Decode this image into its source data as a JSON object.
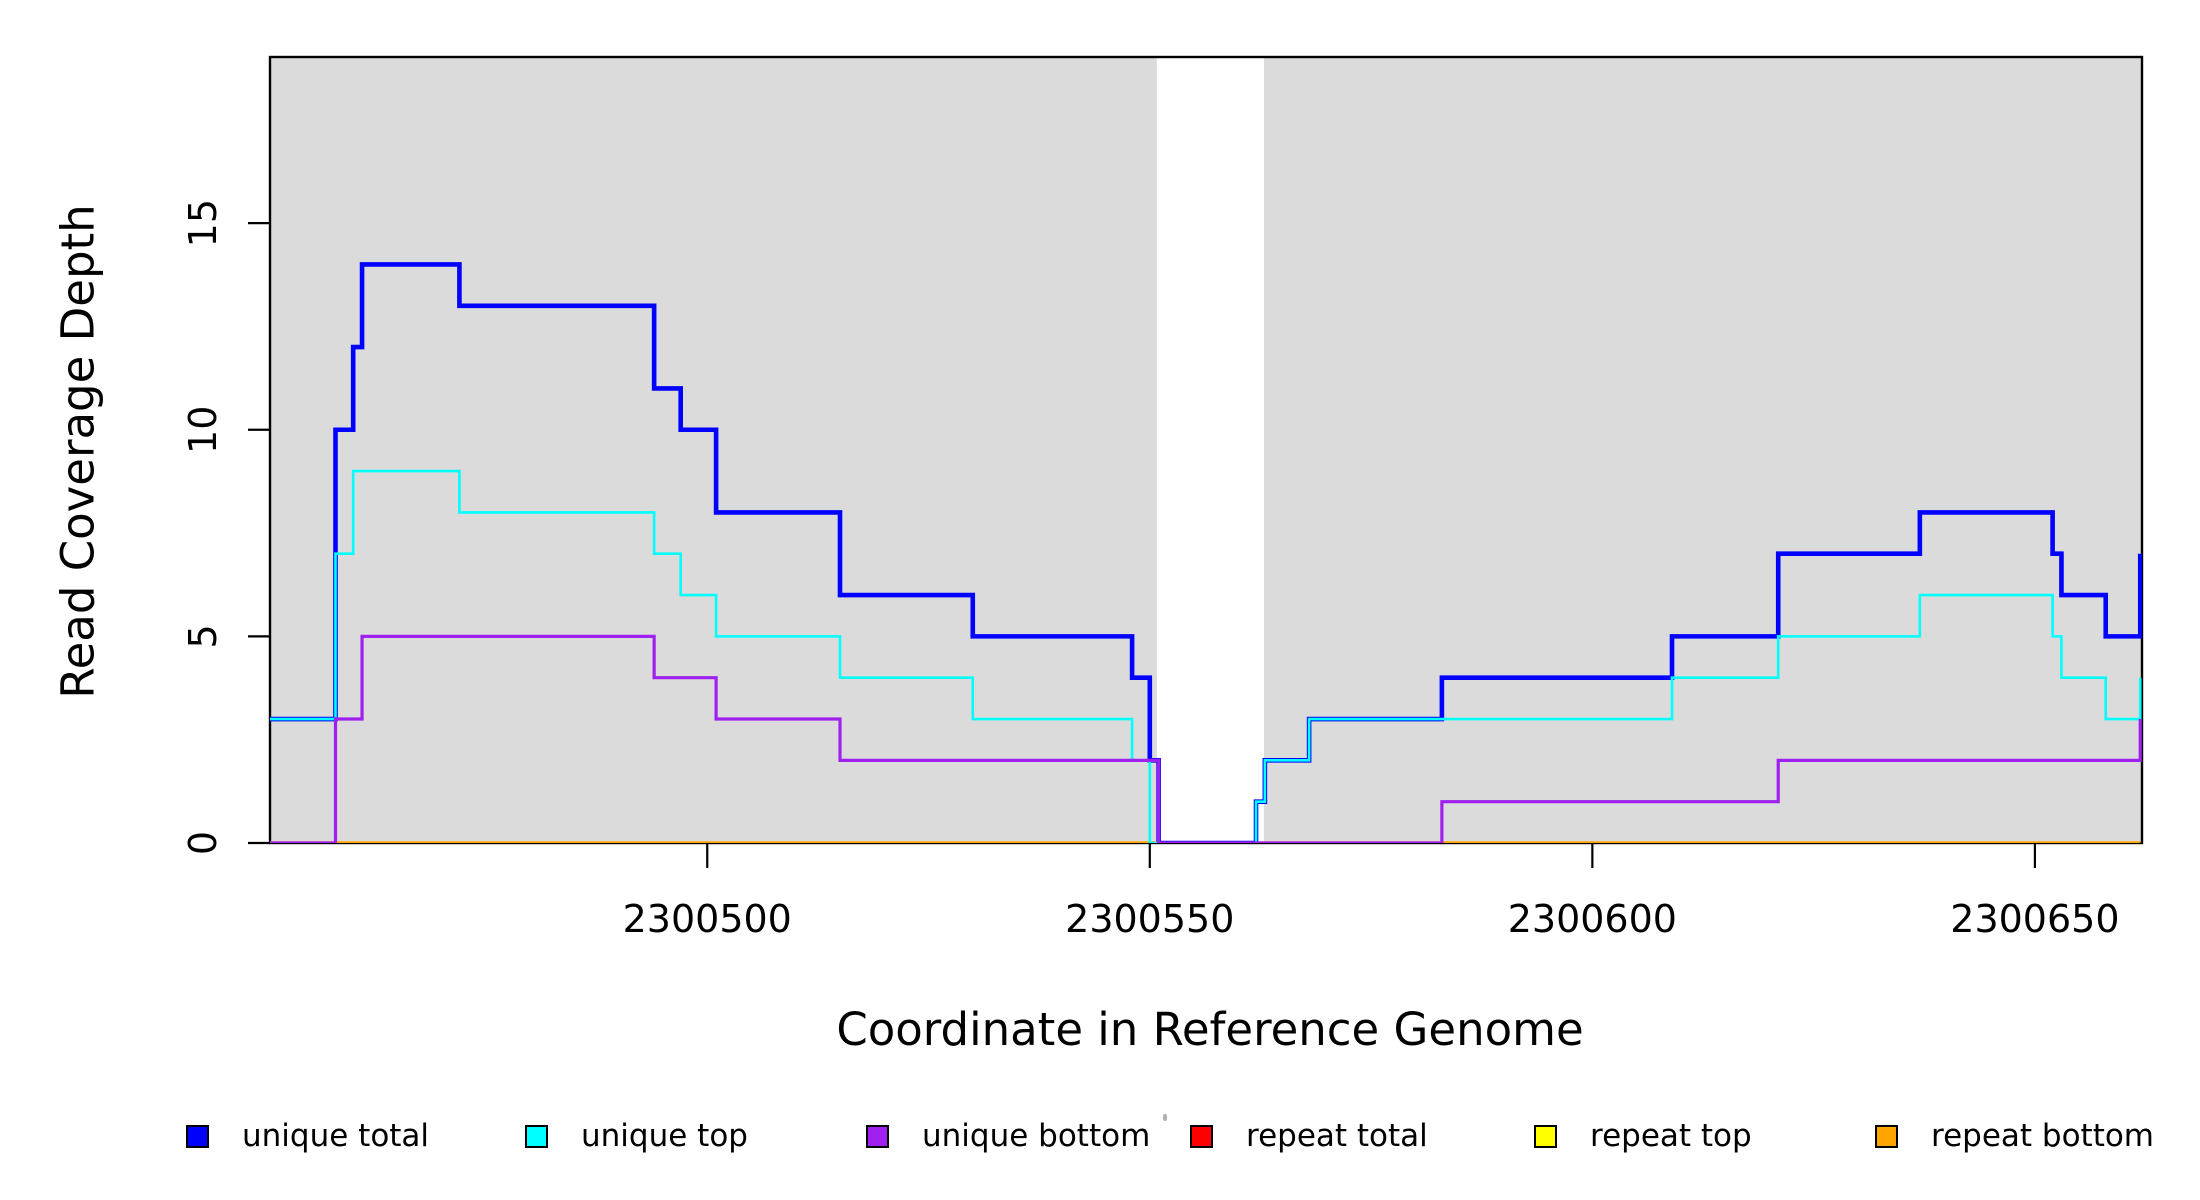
{
  "background": "#FFFFFF",
  "chart_data": {
    "type": "line",
    "subtype": "step-post",
    "title": "",
    "xlabel": "Coordinate in Reference Genome",
    "ylabel": "Read Coverage Depth",
    "xlim": [
      2300450.6,
      2300662.1
    ],
    "ylim": [
      0,
      19.02
    ],
    "x_ticks": [
      2300500,
      2300550,
      2300600,
      2300650
    ],
    "y_ticks": [
      0,
      5,
      10,
      15
    ],
    "grid": false,
    "legend_position": "bottom",
    "plot_bg": "#FFFFFF",
    "shaded_regions": [
      {
        "name": "unique-region-1",
        "x0": 2300450.6,
        "x1": 2300550.8,
        "color": "#DBDBDB"
      },
      {
        "name": "unique-region-2",
        "x0": 2300562.9,
        "x1": 2300662.1,
        "color": "#DBDBDB"
      }
    ],
    "series": [
      {
        "name": "repeat total",
        "color": "#FF0000",
        "width": 3.0,
        "points": [
          [
            2300450.6,
            0
          ],
          [
            2300661.9,
            0
          ]
        ]
      },
      {
        "name": "repeat top",
        "color": "#FFFF00",
        "width": 3.0,
        "points": [
          [
            2300450.6,
            0
          ],
          [
            2300661.9,
            0
          ]
        ]
      },
      {
        "name": "repeat bottom",
        "color": "#FFA500",
        "width": 3.4,
        "points": [
          [
            2300450.6,
            0
          ],
          [
            2300661.9,
            0
          ]
        ]
      },
      {
        "name": "unique total",
        "color": "#0000FF",
        "width": 4.6,
        "points": [
          [
            2300450.6,
            3
          ],
          [
            2300458,
            10
          ],
          [
            2300460,
            12
          ],
          [
            2300461,
            14
          ],
          [
            2300472,
            13
          ],
          [
            2300494,
            11
          ],
          [
            2300497,
            10
          ],
          [
            2300501,
            8
          ],
          [
            2300515,
            6
          ],
          [
            2300530,
            5
          ],
          [
            2300548,
            4
          ],
          [
            2300550,
            2
          ],
          [
            2300551,
            0
          ],
          [
            2300562,
            1
          ],
          [
            2300563,
            2
          ],
          [
            2300568,
            3
          ],
          [
            2300583,
            4
          ],
          [
            2300609,
            5
          ],
          [
            2300621,
            7
          ],
          [
            2300637,
            8
          ],
          [
            2300652,
            7
          ],
          [
            2300653,
            6
          ],
          [
            2300658,
            5
          ],
          [
            2300661.9,
            7
          ]
        ]
      },
      {
        "name": "unique top",
        "color": "#00FFFF",
        "width": 2.6,
        "points": [
          [
            2300450.6,
            3
          ],
          [
            2300458,
            7
          ],
          [
            2300460,
            9
          ],
          [
            2300472,
            8
          ],
          [
            2300494,
            7
          ],
          [
            2300497,
            6
          ],
          [
            2300501,
            5
          ],
          [
            2300515,
            4
          ],
          [
            2300530,
            3
          ],
          [
            2300548,
            2
          ],
          [
            2300550,
            0
          ],
          [
            2300562,
            1
          ],
          [
            2300563,
            2
          ],
          [
            2300568,
            3
          ],
          [
            2300609,
            4
          ],
          [
            2300621,
            5
          ],
          [
            2300637,
            6
          ],
          [
            2300652,
            5
          ],
          [
            2300653,
            4
          ],
          [
            2300658,
            3
          ],
          [
            2300661.9,
            4
          ]
        ]
      },
      {
        "name": "unique bottom",
        "color": "#A020F0",
        "width": 3.2,
        "points": [
          [
            2300450.6,
            0
          ],
          [
            2300458,
            3
          ],
          [
            2300461,
            5
          ],
          [
            2300494,
            4
          ],
          [
            2300501,
            3
          ],
          [
            2300515,
            2
          ],
          [
            2300551,
            0
          ],
          [
            2300583,
            1
          ],
          [
            2300621,
            2
          ],
          [
            2300661.9,
            3
          ]
        ]
      }
    ],
    "legend": [
      {
        "label": "unique total",
        "color": "#0000FF"
      },
      {
        "label": "unique top",
        "color": "#00FFFF"
      },
      {
        "label": "unique bottom",
        "color": "#A020F0"
      },
      {
        "label": "repeat total",
        "color": "#FF0000"
      },
      {
        "label": "repeat top",
        "color": "#FFFF00"
      },
      {
        "label": "repeat bottom",
        "color": "#FFA500"
      }
    ]
  }
}
